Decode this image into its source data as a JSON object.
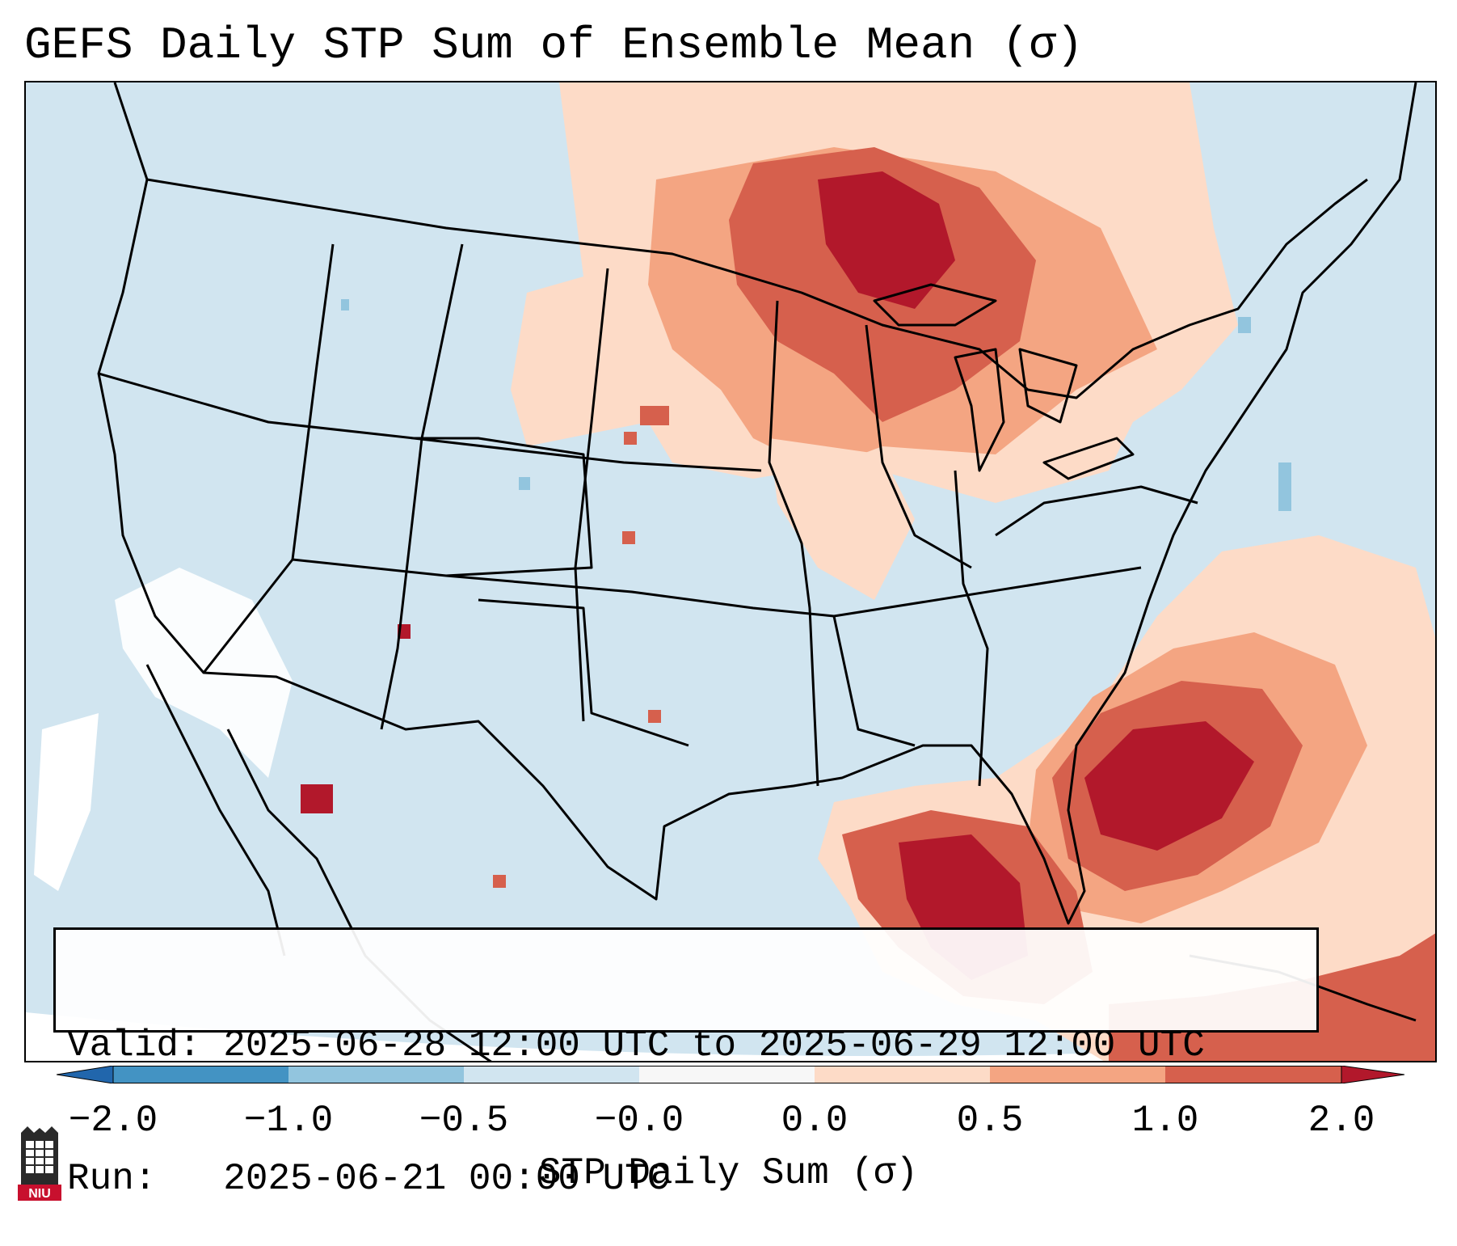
{
  "title": "GEFS Daily STP Sum of Ensemble Mean (σ)",
  "info_box": {
    "valid_line": "Valid: 2025-06-28 12:00 UTC to 2025-06-29 12:00 UTC",
    "run_line": "Run:   2025-06-21 00:00 UTC"
  },
  "colorbar": {
    "label": "STP Daily Sum (σ)",
    "ticks": [
      "−2.0",
      "−1.0",
      "−0.5",
      "−0.0",
      "0.0",
      "0.5",
      "1.0",
      "2.0"
    ],
    "colors": {
      "under": "#2166ac",
      "bins": [
        "#4393c3",
        "#92c5de",
        "#d1e5f0",
        "#f7f7f7",
        "#fddbc7",
        "#f4a582",
        "#d6604d"
      ],
      "over": "#b2182b"
    }
  },
  "logo": {
    "text": "NIU"
  },
  "map_legend": {
    "ocean_color": "#d1e5f0",
    "outline_color": "#000000"
  }
}
